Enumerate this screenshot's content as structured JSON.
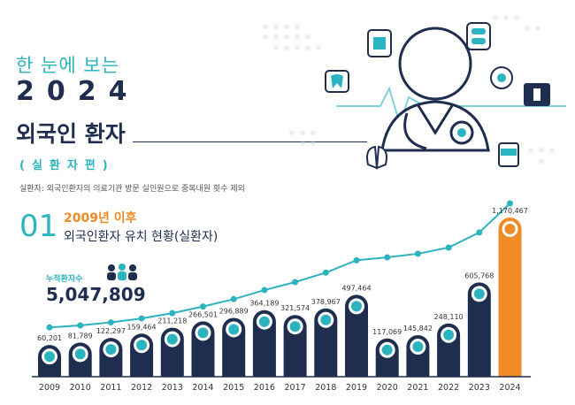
{
  "header": {
    "subtitle": "한 눈에 보는",
    "year": "2024",
    "title": "외국인 환자",
    "tag": "(실환자편)",
    "note": "실환자: 외국인환자의 의료기관 방문 실인원으로 중복내원 횟수 제외"
  },
  "section": {
    "number": "01",
    "title_highlight": "2009년 이후",
    "title": "외국인환자 유치 현황(실환자)"
  },
  "cumulative": {
    "label": "누적환자수",
    "value": "5,047,809"
  },
  "colors": {
    "navy": "#1f2d4e",
    "teal": "#2bb3c0",
    "orange": "#f08a24"
  },
  "chart_data": {
    "type": "bar",
    "categories": [
      "2009",
      "2010",
      "2011",
      "2012",
      "2013",
      "2014",
      "2015",
      "2016",
      "2017",
      "2018",
      "2019",
      "2020",
      "2021",
      "2022",
      "2023",
      "2024"
    ],
    "values": [
      60201,
      81789,
      122297,
      159464,
      211218,
      266501,
      296889,
      364189,
      321574,
      378967,
      497464,
      117069,
      145842,
      248110,
      605768,
      1170467
    ],
    "value_labels": [
      "60,201",
      "81,789",
      "122,297",
      "159,464",
      "211,218",
      "266,501",
      "296,889",
      "364,189",
      "321,574",
      "378,967",
      "497,464",
      "117,069",
      "145,842",
      "248,110",
      "605,768",
      "1,170,467"
    ],
    "cumulative_line": true,
    "highlight_category": "2024"
  }
}
